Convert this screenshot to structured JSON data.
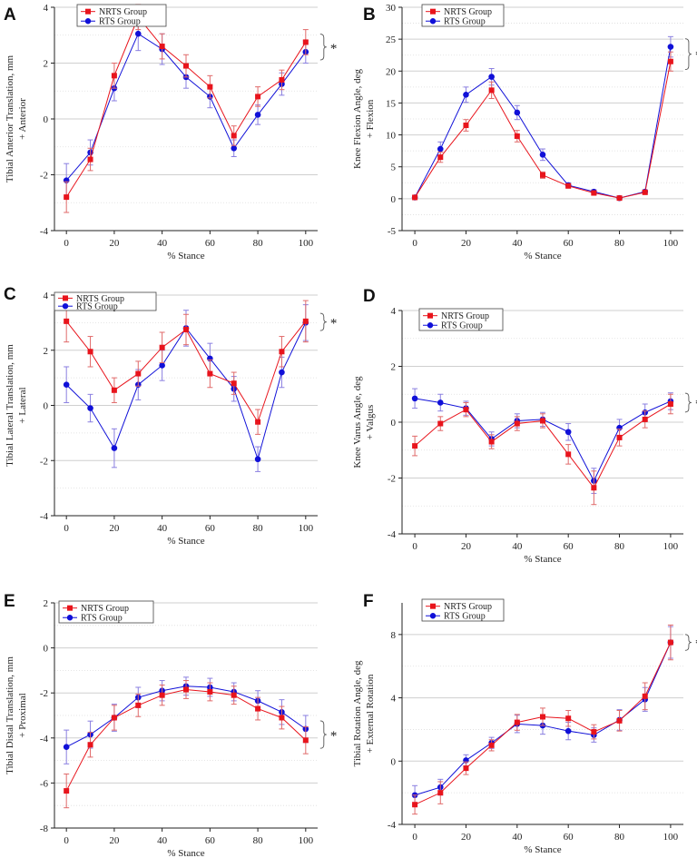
{
  "colors": {
    "nrts": "#e8141c",
    "rts": "#1010d8",
    "nrts_err": "#e06a6a",
    "rts_err": "#8a7fe0",
    "grid": "#cfcfcf"
  },
  "legend": {
    "nrts": "NRTS Group",
    "rts": "RTS Group"
  },
  "significance_mark": "*",
  "chart_data": [
    {
      "panel": "A",
      "type": "line",
      "ylabel": [
        "Tibial Anterior Translation, mm",
        "+ Anterior"
      ],
      "xlabel": "% Stance",
      "x": [
        0,
        10,
        20,
        30,
        40,
        50,
        60,
        70,
        80,
        90,
        100
      ],
      "xticks": [
        0,
        20,
        40,
        60,
        80,
        100
      ],
      "xlim": [
        -5,
        105
      ],
      "ylim": [
        -4,
        4
      ],
      "yticks": [
        -4,
        -2,
        0,
        2,
        4
      ],
      "series": [
        {
          "name": "NRTS Group",
          "values": [
            -2.8,
            -1.45,
            1.55,
            3.65,
            2.6,
            1.9,
            1.15,
            -0.6,
            0.8,
            1.4,
            2.75
          ],
          "err": [
            0.55,
            0.4,
            0.45,
            0.45,
            0.45,
            0.4,
            0.4,
            0.35,
            0.35,
            0.35,
            0.45
          ]
        },
        {
          "name": "RTS Group",
          "values": [
            -2.2,
            -1.2,
            1.1,
            3.05,
            2.5,
            1.5,
            0.8,
            -1.05,
            0.15,
            1.25,
            2.4
          ],
          "err": [
            0.6,
            0.45,
            0.45,
            0.6,
            0.55,
            0.4,
            0.4,
            0.3,
            0.35,
            0.4,
            0.4
          ]
        }
      ]
    },
    {
      "panel": "B",
      "type": "line",
      "ylabel": [
        "Knee Flexion Angle, deg",
        "+ Flexion"
      ],
      "xlabel": "% Stance",
      "x": [
        0,
        10,
        20,
        30,
        40,
        50,
        60,
        70,
        80,
        90,
        100
      ],
      "xticks": [
        0,
        20,
        40,
        60,
        80,
        100
      ],
      "xlim": [
        -5,
        105
      ],
      "ylim": [
        -5,
        30
      ],
      "yticks": [
        -5,
        0,
        5,
        10,
        15,
        20,
        25,
        30
      ],
      "series": [
        {
          "name": "NRTS Group",
          "values": [
            0.2,
            6.5,
            11.5,
            17.0,
            9.8,
            3.7,
            2.0,
            0.9,
            0.1,
            1.0,
            21.5
          ],
          "err": [
            0.2,
            0.8,
            0.9,
            1.3,
            0.9,
            0.5,
            0.3,
            0.3,
            0.2,
            0.3,
            1.5
          ]
        },
        {
          "name": "RTS Group",
          "values": [
            0.2,
            7.8,
            16.3,
            19.1,
            13.5,
            6.9,
            2.1,
            1.1,
            0.1,
            1.1,
            23.8
          ],
          "err": [
            0.2,
            1.1,
            1.2,
            1.3,
            1.1,
            0.9,
            0.4,
            0.3,
            0.2,
            0.3,
            1.6
          ]
        }
      ]
    },
    {
      "panel": "C",
      "type": "line",
      "ylabel": [
        "Tibial Lateral Translation, mm",
        "+ Lateral"
      ],
      "xlabel": "% Stance",
      "x": [
        0,
        10,
        20,
        30,
        40,
        50,
        60,
        70,
        80,
        90,
        100
      ],
      "xticks": [
        0,
        20,
        40,
        60,
        80,
        100
      ],
      "xlim": [
        -5,
        105
      ],
      "ylim": [
        -4,
        4
      ],
      "yticks": [
        -4,
        -2,
        0,
        2,
        4
      ],
      "series": [
        {
          "name": "NRTS Group",
          "values": [
            3.05,
            1.95,
            0.55,
            1.15,
            2.1,
            2.75,
            1.15,
            0.8,
            -0.6,
            1.95,
            3.05
          ],
          "err": [
            0.75,
            0.55,
            0.45,
            0.45,
            0.55,
            0.55,
            0.5,
            0.4,
            0.45,
            0.55,
            0.75
          ]
        },
        {
          "name": "RTS Group",
          "values": [
            0.75,
            -0.1,
            -1.55,
            0.75,
            1.45,
            2.8,
            1.7,
            0.6,
            -1.95,
            1.2,
            3.0
          ],
          "err": [
            0.65,
            0.5,
            0.7,
            0.55,
            0.55,
            0.65,
            0.55,
            0.45,
            0.45,
            0.55,
            0.65
          ]
        }
      ]
    },
    {
      "panel": "D",
      "type": "line",
      "ylabel": [
        "Knee Varus Angle, deg",
        "+ Valgus"
      ],
      "xlabel": "% Stance",
      "x": [
        0,
        10,
        20,
        30,
        40,
        50,
        60,
        70,
        80,
        90,
        100
      ],
      "xticks": [
        0,
        20,
        40,
        60,
        80,
        100
      ],
      "xlim": [
        -5,
        105
      ],
      "ylim": [
        -4,
        4
      ],
      "yticks": [
        -4,
        -2,
        0,
        2,
        4
      ],
      "series": [
        {
          "name": "NRTS Group",
          "values": [
            -0.85,
            -0.05,
            0.45,
            -0.7,
            -0.05,
            0.05,
            -1.15,
            -2.35,
            -0.55,
            0.1,
            0.65
          ],
          "err": [
            0.35,
            0.25,
            0.25,
            0.25,
            0.25,
            0.25,
            0.35,
            0.6,
            0.3,
            0.3,
            0.35
          ]
        },
        {
          "name": "RTS Group",
          "values": [
            0.85,
            0.7,
            0.5,
            -0.6,
            0.05,
            0.1,
            -0.35,
            -2.1,
            -0.2,
            0.35,
            0.75
          ],
          "err": [
            0.35,
            0.3,
            0.25,
            0.25,
            0.25,
            0.25,
            0.3,
            0.45,
            0.3,
            0.3,
            0.3
          ]
        }
      ]
    },
    {
      "panel": "E",
      "type": "line",
      "ylabel": [
        "Tibial Distal Translation, mm",
        "+ Proximal"
      ],
      "xlabel": "% Stance",
      "x": [
        0,
        10,
        20,
        30,
        40,
        50,
        60,
        70,
        80,
        90,
        100
      ],
      "xticks": [
        0,
        20,
        40,
        60,
        80,
        100
      ],
      "xlim": [
        -5,
        105
      ],
      "ylim": [
        -8,
        2
      ],
      "yticks": [
        -8,
        -6,
        -4,
        -2,
        0,
        2
      ],
      "series": [
        {
          "name": "NRTS Group",
          "values": [
            -6.35,
            -4.3,
            -3.1,
            -2.55,
            -2.1,
            -1.85,
            -1.95,
            -2.1,
            -2.7,
            -3.1,
            -4.1
          ],
          "err": [
            0.75,
            0.55,
            0.55,
            0.5,
            0.45,
            0.4,
            0.4,
            0.4,
            0.5,
            0.5,
            0.6
          ]
        },
        {
          "name": "RTS Group",
          "values": [
            -4.4,
            -3.85,
            -3.1,
            -2.2,
            -1.9,
            -1.7,
            -1.75,
            -1.95,
            -2.35,
            -2.85,
            -3.6
          ],
          "err": [
            0.75,
            0.6,
            0.6,
            0.45,
            0.45,
            0.4,
            0.4,
            0.4,
            0.45,
            0.55,
            0.6
          ]
        }
      ]
    },
    {
      "panel": "F",
      "type": "line",
      "ylabel": [
        "Tibial Rotation Angle, deg",
        "+ External Rotation"
      ],
      "xlabel": "% Stance",
      "x": [
        0,
        10,
        20,
        30,
        40,
        50,
        60,
        70,
        80,
        90,
        100
      ],
      "xticks": [
        0,
        20,
        40,
        60,
        80,
        100
      ],
      "xlim": [
        -5,
        105
      ],
      "ylim": [
        -4,
        10
      ],
      "yticks": [
        -4,
        0,
        4,
        8
      ],
      "series": [
        {
          "name": "NRTS Group",
          "values": [
            -2.75,
            -2.0,
            -0.45,
            1.0,
            2.45,
            2.8,
            2.7,
            1.85,
            2.55,
            4.1,
            7.5
          ],
          "err": [
            0.6,
            0.7,
            0.4,
            0.35,
            0.5,
            0.55,
            0.5,
            0.45,
            0.65,
            0.85,
            1.1
          ]
        },
        {
          "name": "RTS Group",
          "values": [
            -2.15,
            -1.65,
            0.05,
            1.15,
            2.35,
            2.25,
            1.9,
            1.65,
            2.6,
            3.9,
            7.5
          ],
          "err": [
            0.6,
            0.5,
            0.35,
            0.35,
            0.55,
            0.55,
            0.55,
            0.45,
            0.65,
            0.75,
            1.0
          ]
        }
      ]
    }
  ]
}
